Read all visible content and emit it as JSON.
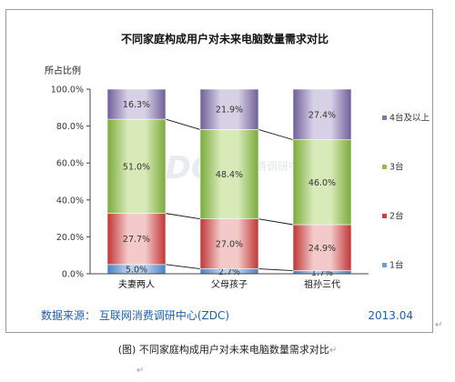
{
  "chart_data": {
    "type": "bar",
    "stacked": true,
    "title": "不同家庭构成用户对未来电脑数量需求对比",
    "ylabel": "所占比例",
    "ylim": [
      0,
      100
    ],
    "yticks": [
      "0.0%",
      "20.0%",
      "40.0%",
      "60.0%",
      "80.0%",
      "100.0%"
    ],
    "categories": [
      "夫妻两人",
      "父母孩子",
      "祖孙三代"
    ],
    "series": [
      {
        "name": "1台",
        "values": [
          5.0,
          2.7,
          1.7
        ],
        "labels": [
          "5.0%",
          "2.7%",
          "1.7%"
        ],
        "color": "#6e9fd6"
      },
      {
        "name": "2台",
        "values": [
          27.7,
          27.0,
          24.9
        ],
        "labels": [
          "27.7%",
          "27.0%",
          "24.9%"
        ],
        "color": "#cf3d3d"
      },
      {
        "name": "3台",
        "values": [
          51.0,
          48.4,
          46.0
        ],
        "labels": [
          "51.0%",
          "48.4%",
          "46.0%"
        ],
        "color": "#8fbf4a"
      },
      {
        "name": "4台及以上",
        "values": [
          16.3,
          21.9,
          27.4
        ],
        "labels": [
          "16.3%",
          "21.9%",
          "27.4%"
        ],
        "color": "#8473ab"
      }
    ],
    "legend_position": "right",
    "grid": false
  },
  "footer": {
    "source": "数据来源：   互联网消费调研中心(ZDC)",
    "date": "2013.04"
  },
  "watermark": {
    "logo": "ZDC",
    "text": "互联网消费调研中心"
  },
  "caption": "(图)  不同家庭构成用户对未来电脑数量需求对比",
  "marks": {
    "return": "↵"
  }
}
